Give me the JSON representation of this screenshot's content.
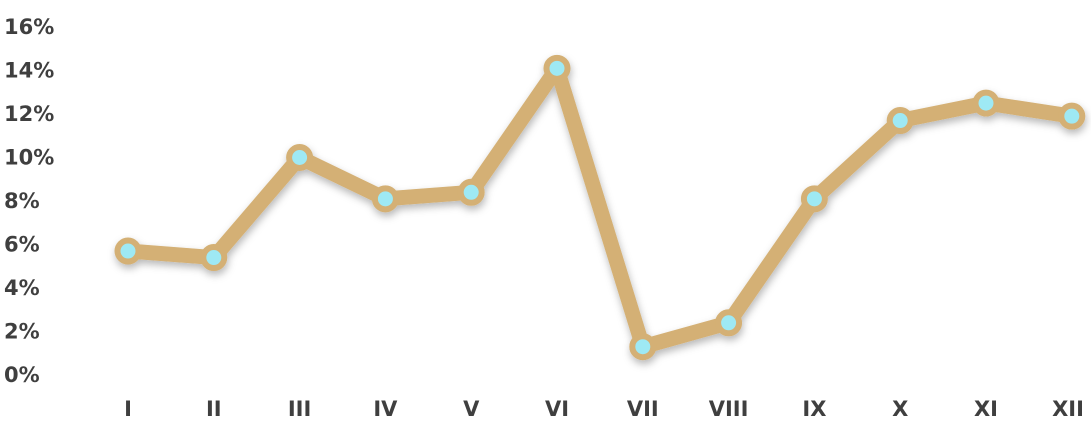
{
  "chart_data": {
    "type": "line",
    "title": "",
    "xlabel": "",
    "ylabel": "",
    "categories": [
      "I",
      "II",
      "III",
      "IV",
      "V",
      "VI",
      "VII",
      "VIII",
      "IX",
      "X",
      "XI",
      "XII"
    ],
    "y_ticks": [
      "0%",
      "2%",
      "4%",
      "6%",
      "8%",
      "10%",
      "12%",
      "14%",
      "16%"
    ],
    "ylim": [
      0,
      16
    ],
    "grid": false,
    "legend": "none",
    "series": [
      {
        "values": [
          5.7,
          5.4,
          10.0,
          8.1,
          8.4,
          14.1,
          1.3,
          2.4,
          8.1,
          11.7,
          12.5,
          11.9
        ],
        "line_color": "#d4b074",
        "marker_color": "#9ee9f4"
      }
    ]
  }
}
